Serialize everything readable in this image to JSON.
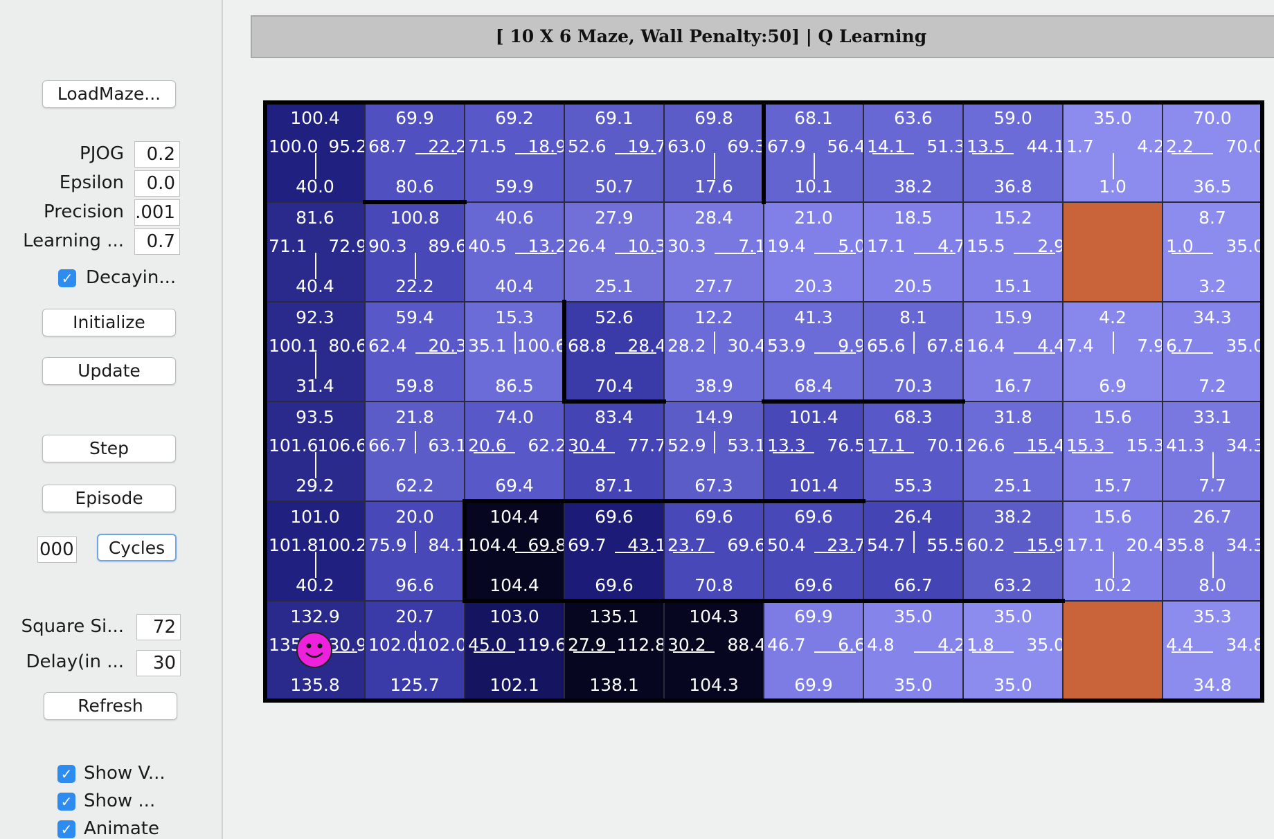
{
  "controls": {
    "load_maze": "LoadMaze...",
    "initialize": "Initialize",
    "update": "Update",
    "step": "Step",
    "episode": "Episode",
    "cycles": "Cycles",
    "refresh": "Refresh",
    "decaying_label": "Decayin...",
    "cycles_value": "000"
  },
  "params": [
    {
      "label": "PJOG",
      "value": "0.2"
    },
    {
      "label": "Epsilon",
      "value": "0.0"
    },
    {
      "label": "Precision",
      "value": ".001"
    },
    {
      "label": "Learning ...",
      "value": "0.7"
    }
  ],
  "display_params": [
    {
      "label": "Square Si...",
      "value": "72"
    },
    {
      "label": "Delay(in ...",
      "value": "30"
    }
  ],
  "checkboxes": [
    {
      "label": "Show V...",
      "checked": true
    },
    {
      "label": "Show ...",
      "checked": true
    },
    {
      "label": "Animate",
      "checked": true
    }
  ],
  "title": "[ 10 X 6 Maze, Wall Penalty:50] |  Q Learning",
  "maze": {
    "cols": 10,
    "rows": 6,
    "goal_color": "#c8633a",
    "agent_color": "#ee22dd",
    "cells": [
      [
        {
          "up": "100.4",
          "left": "100.0",
          "right": "95.2",
          "down": "40.0",
          "color": "#202080",
          "policy": [
            "down"
          ]
        },
        {
          "up": "69.9",
          "left": "68.7",
          "right": "22.2",
          "down": "80.6",
          "color": "#5050c0",
          "policy": [
            "right"
          ]
        },
        {
          "up": "69.2",
          "left": "71.5",
          "right": "18.9",
          "down": "59.9",
          "color": "#5858c8",
          "policy": [
            "right"
          ]
        },
        {
          "up": "69.1",
          "left": "52.6",
          "right": "19.7",
          "down": "50.7",
          "color": "#5c5cc8",
          "policy": [
            "right"
          ]
        },
        {
          "up": "69.8",
          "left": "63.0",
          "right": "69.3",
          "down": "17.6",
          "color": "#5c5cc8",
          "policy": [
            "down"
          ]
        },
        {
          "up": "68.1",
          "left": "67.9",
          "right": "56.4",
          "down": "10.1",
          "color": "#6464d0",
          "policy": [
            "down"
          ]
        },
        {
          "up": "63.6",
          "left": "14.1",
          "right": "51.3",
          "down": "38.2",
          "color": "#6868d4",
          "policy": [
            "left"
          ]
        },
        {
          "up": "59.0",
          "left": "13.5",
          "right": "44.1",
          "down": "36.8",
          "color": "#6c6cd8",
          "policy": [
            "left"
          ]
        },
        {
          "up": "35.0",
          "left": "1.7",
          "right": "4.2",
          "down": "1.0",
          "color": "#8c8cee",
          "policy": [
            "down"
          ]
        },
        {
          "up": "70.0",
          "left": "2.2",
          "right": "70.0",
          "down": "36.5",
          "color": "#8c8cee",
          "policy": [
            "left"
          ]
        }
      ],
      [
        {
          "up": "81.6",
          "left": "71.1",
          "right": "72.9",
          "down": "40.4",
          "color": "#2a2a8c",
          "policy": [
            "down"
          ]
        },
        {
          "up": "100.8",
          "left": "90.3",
          "right": "89.6",
          "down": "22.2",
          "color": "#4848b8",
          "policy": [
            "down"
          ]
        },
        {
          "up": "40.6",
          "left": "40.5",
          "right": "13.2",
          "down": "40.4",
          "color": "#6868d4",
          "policy": [
            "right"
          ]
        },
        {
          "up": "27.9",
          "left": "26.4",
          "right": "10.3",
          "down": "25.1",
          "color": "#7070d8",
          "policy": [
            "right"
          ]
        },
        {
          "up": "28.4",
          "left": "30.3",
          "right": "7.1",
          "down": "27.7",
          "color": "#7878e0",
          "policy": [
            "right"
          ]
        },
        {
          "up": "21.0",
          "left": "19.4",
          "right": "5.0",
          "down": "20.3",
          "color": "#8080e8",
          "policy": [
            "right"
          ]
        },
        {
          "up": "18.5",
          "left": "17.1",
          "right": "4.7",
          "down": "20.5",
          "color": "#8080e8",
          "policy": [
            "right"
          ]
        },
        {
          "up": "15.2",
          "left": "15.5",
          "right": "2.9",
          "down": "15.1",
          "color": "#8080e8",
          "policy": [
            "right"
          ]
        },
        {
          "goal": true
        },
        {
          "up": "8.7",
          "left": "1.0",
          "right": "35.0",
          "down": "3.2",
          "color": "#8c8cee",
          "policy": [
            "left"
          ]
        }
      ],
      [
        {
          "up": "92.3",
          "left": "100.1",
          "right": "80.6",
          "down": "31.4",
          "color": "#2a2a8c",
          "policy": [
            "down"
          ]
        },
        {
          "up": "59.4",
          "left": "62.4",
          "right": "20.3",
          "down": "59.8",
          "color": "#5858c8",
          "policy": [
            "right"
          ]
        },
        {
          "up": "15.3",
          "left": "35.1",
          "right": "100.6",
          "down": "86.5",
          "color": "#6c6cd8",
          "policy": [
            "up"
          ]
        },
        {
          "up": "52.6",
          "left": "68.8",
          "right": "28.4",
          "down": "70.4",
          "color": "#3a3aa8",
          "policy": [
            "right"
          ]
        },
        {
          "up": "12.2",
          "left": "28.2",
          "right": "30.4",
          "down": "38.9",
          "color": "#6c6cd8",
          "policy": [
            "up"
          ]
        },
        {
          "up": "41.3",
          "left": "53.9",
          "right": "9.9",
          "down": "68.4",
          "color": "#6c6cd8",
          "policy": [
            "right"
          ]
        },
        {
          "up": "8.1",
          "left": "65.6",
          "right": "67.8",
          "down": "70.3",
          "color": "#6868d4",
          "policy": [
            "up"
          ]
        },
        {
          "up": "15.9",
          "left": "16.4",
          "right": "4.4",
          "down": "16.7",
          "color": "#7c7ce4",
          "policy": [
            "right"
          ]
        },
        {
          "up": "4.2",
          "left": "7.4",
          "right": "7.9",
          "down": "6.9",
          "color": "#8888ec",
          "policy": [
            "up"
          ]
        },
        {
          "up": "34.3",
          "left": "6.7",
          "right": "35.0",
          "down": "7.2",
          "color": "#8484ea",
          "policy": [
            "left"
          ]
        }
      ],
      [
        {
          "up": "93.5",
          "left": "101.6",
          "right": "106.6",
          "down": "29.2",
          "color": "#2a2a8c",
          "policy": [
            "down"
          ]
        },
        {
          "up": "21.8",
          "left": "66.7",
          "right": "63.1",
          "down": "62.2",
          "color": "#5c5cc8",
          "policy": [
            "up"
          ]
        },
        {
          "up": "74.0",
          "left": "20.6",
          "right": "62.2",
          "down": "69.4",
          "color": "#5858c8",
          "policy": [
            "left"
          ]
        },
        {
          "up": "83.4",
          "left": "30.4",
          "right": "77.7",
          "down": "87.1",
          "color": "#4444b4",
          "policy": [
            "left"
          ]
        },
        {
          "up": "14.9",
          "left": "52.9",
          "right": "53.1",
          "down": "67.3",
          "color": "#5c5cc8",
          "policy": [
            "up"
          ]
        },
        {
          "up": "101.4",
          "left": "13.3",
          "right": "76.5",
          "down": "101.4",
          "color": "#4848b8",
          "policy": [
            "left"
          ]
        },
        {
          "up": "68.3",
          "left": "17.1",
          "right": "70.1",
          "down": "55.3",
          "color": "#5858c8",
          "policy": [
            "left"
          ]
        },
        {
          "up": "31.8",
          "left": "26.6",
          "right": "15.4",
          "down": "25.1",
          "color": "#6c6cd8",
          "policy": [
            "right"
          ]
        },
        {
          "up": "15.6",
          "left": "15.3",
          "right": "15.3",
          "down": "15.7",
          "color": "#7c7ce4",
          "policy": [
            "left"
          ]
        },
        {
          "up": "33.1",
          "left": "41.3",
          "right": "34.3",
          "down": "7.7",
          "color": "#7878e0",
          "policy": [
            "down"
          ]
        }
      ],
      [
        {
          "up": "101.0",
          "left": "101.8",
          "right": "100.2",
          "down": "40.2",
          "color": "#202080",
          "policy": [
            "down"
          ]
        },
        {
          "up": "20.0",
          "left": "75.9",
          "right": "84.1",
          "down": "96.6",
          "color": "#4848b8",
          "policy": [
            "up"
          ]
        },
        {
          "up": "104.4",
          "left": "104.4",
          "right": "69.8",
          "down": "104.4",
          "color": "#060620",
          "policy": [
            "right"
          ]
        },
        {
          "up": "69.6",
          "left": "69.7",
          "right": "43.1",
          "down": "69.6",
          "color": "#1c1c78",
          "policy": [
            "right"
          ]
        },
        {
          "up": "69.6",
          "left": "23.7",
          "right": "69.6",
          "down": "70.8",
          "color": "#4848b8",
          "policy": [
            "left"
          ]
        },
        {
          "up": "69.6",
          "left": "50.4",
          "right": "23.7",
          "down": "69.6",
          "color": "#4848b8",
          "policy": [
            "right"
          ]
        },
        {
          "up": "26.4",
          "left": "54.7",
          "right": "55.5",
          "down": "66.7",
          "color": "#4444b4",
          "policy": [
            "up"
          ]
        },
        {
          "up": "38.2",
          "left": "60.2",
          "right": "15.9",
          "down": "63.2",
          "color": "#5c5cc8",
          "policy": [
            "right"
          ]
        },
        {
          "up": "15.6",
          "left": "17.1",
          "right": "20.4",
          "down": "10.2",
          "color": "#8080e8",
          "policy": [
            "down"
          ]
        },
        {
          "up": "26.7",
          "left": "35.8",
          "right": "34.3",
          "down": "8.0",
          "color": "#7878e0",
          "policy": [
            "down"
          ]
        }
      ],
      [
        {
          "up": "132.9",
          "left": "135",
          "right": "30.9",
          "down": "135.8",
          "color": "#2a2a8c",
          "policy": [
            "right"
          ],
          "agent": true
        },
        {
          "up": "20.7",
          "left": "102.0",
          "right": "102.0",
          "down": "125.7",
          "color": "#3a3aa8",
          "policy": [
            "up"
          ]
        },
        {
          "up": "103.0",
          "left": "45.0",
          "right": "119.6",
          "down": "102.1",
          "color": "#141460",
          "policy": [
            "left"
          ]
        },
        {
          "up": "135.1",
          "left": "27.9",
          "right": "112.8",
          "down": "138.1",
          "color": "#060620",
          "policy": [
            "left"
          ]
        },
        {
          "up": "104.3",
          "left": "30.2",
          "right": "88.4",
          "down": "104.3",
          "color": "#060620",
          "policy": [
            "left"
          ]
        },
        {
          "up": "69.9",
          "left": "46.7",
          "right": "6.6",
          "down": "69.9",
          "color": "#7c7ce4",
          "policy": [
            "right"
          ]
        },
        {
          "up": "35.0",
          "left": "4.8",
          "right": "4.2",
          "down": "35.0",
          "color": "#8484ea",
          "policy": [
            "right"
          ]
        },
        {
          "up": "35.0",
          "left": "1.8",
          "right": "35.0",
          "down": "35.0",
          "color": "#8c8cee",
          "policy": [
            "left"
          ]
        },
        {
          "goal": true
        },
        {
          "up": "35.3",
          "left": "4.4",
          "right": "34.8",
          "down": "34.8",
          "color": "#8c8cee",
          "policy": [
            "left"
          ]
        }
      ]
    ]
  }
}
